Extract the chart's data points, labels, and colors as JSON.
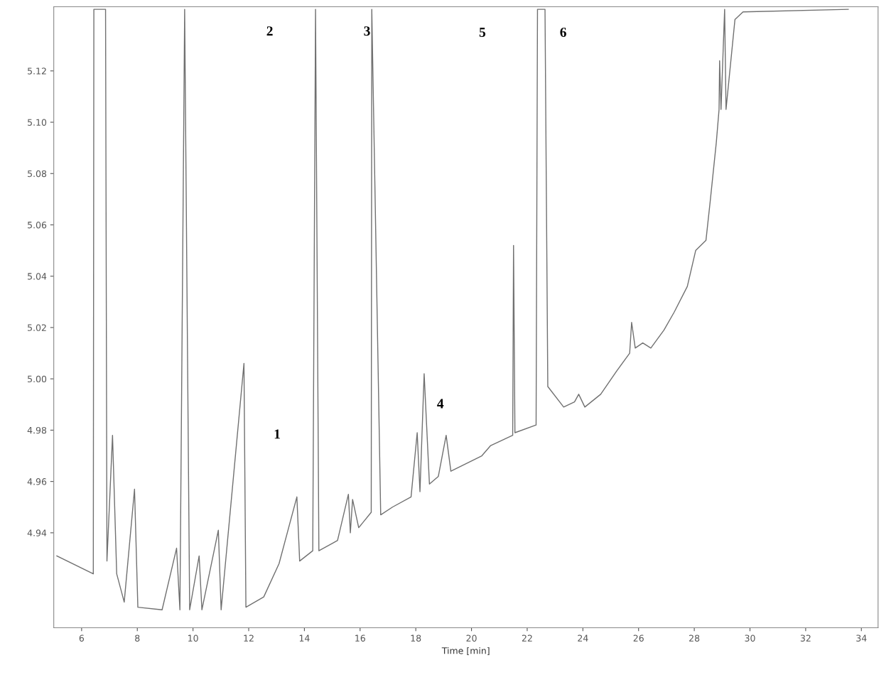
{
  "chart_data": {
    "type": "line",
    "xlabel": "Time [min]",
    "xlim": [
      5.0,
      34.6
    ],
    "ylim": [
      4.903,
      5.145
    ],
    "xticks": [
      6,
      8,
      10,
      12,
      14,
      16,
      18,
      20,
      22,
      24,
      26,
      28,
      30,
      32,
      34
    ],
    "yticks": [
      {
        "value": 4.94,
        "label": "4.94"
      },
      {
        "value": 4.96,
        "label": "4.96"
      },
      {
        "value": 4.98,
        "label": "4.98"
      },
      {
        "value": 5.0,
        "label": "5.00"
      },
      {
        "value": 5.02,
        "label": "5.02"
      },
      {
        "value": 5.04,
        "label": "5.04"
      },
      {
        "value": 5.06,
        "label": "5.06"
      },
      {
        "value": 5.08,
        "label": "5.08"
      },
      {
        "value": 5.1,
        "label": "5.10"
      },
      {
        "value": 5.12,
        "label": "5.12"
      }
    ],
    "grid": false,
    "marker": "none",
    "line_style": "solid",
    "series": [
      {
        "color": "#707070",
        "x": [
          5.11,
          6.42,
          6.44,
          6.86,
          6.91,
          7.11,
          7.26,
          7.53,
          7.9,
          8.02,
          8.89,
          9.41,
          9.53,
          9.7,
          9.88,
          10.22,
          10.32,
          10.91,
          11.01,
          11.83,
          11.9,
          12.54,
          13.09,
          13.73,
          13.83,
          14.3,
          14.4,
          14.52,
          15.19,
          15.58,
          15.65,
          15.73,
          15.95,
          16.4,
          16.42,
          16.74,
          17.16,
          17.83,
          18.05,
          18.15,
          18.3,
          18.49,
          18.81,
          19.09,
          19.26,
          20.37,
          20.69,
          21.48,
          21.51,
          21.56,
          22.32,
          22.37,
          22.64,
          22.74,
          23.31,
          23.7,
          23.85,
          24.07,
          24.64,
          25.21,
          25.68,
          25.75,
          25.88,
          26.15,
          26.44,
          26.91,
          27.28,
          27.75,
          28.05,
          28.42,
          28.57,
          28.79,
          28.89,
          28.91,
          28.96,
          29.09,
          29.14,
          29.46,
          29.75,
          33.53
        ],
        "values": [
          4.931,
          4.924,
          5.144,
          5.144,
          4.929,
          4.978,
          4.924,
          4.913,
          4.957,
          4.911,
          4.91,
          4.934,
          4.91,
          5.144,
          4.91,
          4.931,
          4.91,
          4.941,
          4.91,
          5.006,
          4.911,
          4.915,
          4.928,
          4.954,
          4.929,
          4.933,
          5.144,
          4.933,
          4.937,
          4.955,
          4.94,
          4.953,
          4.942,
          4.948,
          5.144,
          4.947,
          4.95,
          4.954,
          4.979,
          4.956,
          5.002,
          4.959,
          4.962,
          4.978,
          4.964,
          4.97,
          4.974,
          4.978,
          5.052,
          4.979,
          4.982,
          5.144,
          5.144,
          4.997,
          4.989,
          4.991,
          4.994,
          4.989,
          4.994,
          5.003,
          5.01,
          5.022,
          5.012,
          5.014,
          5.012,
          5.019,
          5.026,
          5.036,
          5.05,
          5.054,
          5.069,
          5.092,
          5.105,
          5.124,
          5.105,
          5.144,
          5.105,
          5.14,
          5.143,
          5.144
        ]
      }
    ],
    "annotations": [
      "1",
      "2",
      "3",
      "4",
      "5",
      "6"
    ]
  }
}
